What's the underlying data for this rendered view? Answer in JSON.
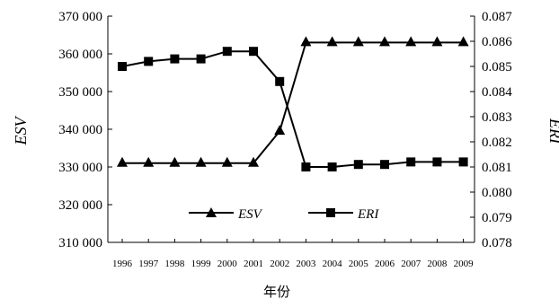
{
  "chart_data": {
    "type": "line",
    "title": "",
    "xlabel": "年份",
    "ylabel": "ESV",
    "y2label": "ERI",
    "categories": [
      "1996",
      "1997",
      "1998",
      "1999",
      "2000",
      "2001",
      "2002",
      "2003",
      "2004",
      "2005",
      "2006",
      "2007",
      "2008",
      "2009"
    ],
    "ylim": [
      310000,
      370000
    ],
    "y2lim": [
      0.078,
      0.087
    ],
    "yticks": [
      "310 000",
      "320 000",
      "330 000",
      "340 000",
      "350 000",
      "360 000",
      "370 000"
    ],
    "y2ticks": [
      "0.078",
      "0.079",
      "0.080",
      "0.081",
      "0.082",
      "0.083",
      "0.084",
      "0.085",
      "0.086",
      "0.087"
    ],
    "legend_position": "lower-center",
    "series": [
      {
        "name": "ESV",
        "axis": "left",
        "marker": "triangle",
        "values": [
          331000,
          331000,
          331000,
          331000,
          331000,
          331000,
          339500,
          363000,
          363000,
          363000,
          363000,
          363000,
          363000,
          363000
        ]
      },
      {
        "name": "ERI",
        "axis": "right",
        "marker": "square",
        "values": [
          0.085,
          0.0852,
          0.0853,
          0.0853,
          0.0856,
          0.0856,
          0.0844,
          0.081,
          0.081,
          0.0811,
          0.0811,
          0.0812,
          0.0812,
          0.0812
        ]
      }
    ]
  }
}
